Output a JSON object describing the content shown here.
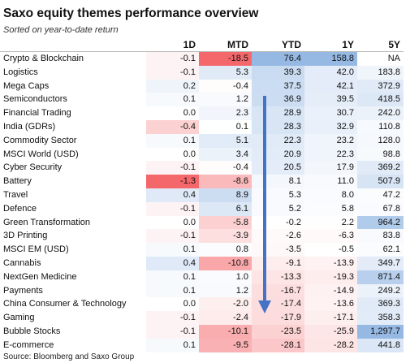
{
  "header": {
    "title": "Saxo equity themes performance overview",
    "subtitle": "Sorted on year-to-date return"
  },
  "table": {
    "columns": [
      "1D",
      "MTD",
      "YTD",
      "1Y",
      "5Y"
    ],
    "rows": [
      {
        "name": "Crypto & Blockchain",
        "cells": [
          "-0.1",
          "-18.5",
          "76.4",
          "158.8",
          "NA"
        ]
      },
      {
        "name": "Logistics",
        "cells": [
          "-0.1",
          "5.3",
          "39.3",
          "42.0",
          "183.8"
        ]
      },
      {
        "name": "Mega Caps",
        "cells": [
          "0.2",
          "-0.4",
          "37.5",
          "42.1",
          "372.9"
        ]
      },
      {
        "name": "Semiconductors",
        "cells": [
          "0.1",
          "1.2",
          "36.9",
          "39.5",
          "418.5"
        ]
      },
      {
        "name": "Financial Trading",
        "cells": [
          "0.0",
          "2.3",
          "28.9",
          "30.7",
          "242.0"
        ]
      },
      {
        "name": "India (GDRs)",
        "cells": [
          "-0.4",
          "0.1",
          "28.3",
          "32.9",
          "110.8"
        ]
      },
      {
        "name": "Commodity Sector",
        "cells": [
          "0.1",
          "5.1",
          "22.3",
          "23.2",
          "128.0"
        ]
      },
      {
        "name": "MSCI World (USD)",
        "cells": [
          "0.0",
          "3.4",
          "20.9",
          "22.3",
          "98.8"
        ]
      },
      {
        "name": "Cyber Security",
        "cells": [
          "-0.1",
          "-0.4",
          "20.5",
          "17.9",
          "369.2"
        ]
      },
      {
        "name": "Battery",
        "cells": [
          "-1.3",
          "-8.6",
          "8.1",
          "11.0",
          "507.9"
        ]
      },
      {
        "name": "Travel",
        "cells": [
          "0.4",
          "8.9",
          "5.3",
          "8.0",
          "47.2"
        ]
      },
      {
        "name": "Defence",
        "cells": [
          "-0.1",
          "6.1",
          "5.2",
          "5.8",
          "67.8"
        ]
      },
      {
        "name": "Green Transformation",
        "cells": [
          "0.0",
          "-5.8",
          "-0.2",
          "2.2",
          "964.2"
        ]
      },
      {
        "name": "3D Printing",
        "cells": [
          "-0.1",
          "-3.9",
          "-2.6",
          "-6.3",
          "83.8"
        ]
      },
      {
        "name": "MSCI EM (USD)",
        "cells": [
          "0.1",
          "0.8",
          "-3.5",
          "-0.5",
          "62.1"
        ]
      },
      {
        "name": "Cannabis",
        "cells": [
          "0.4",
          "-10.8",
          "-9.1",
          "-13.9",
          "349.7"
        ]
      },
      {
        "name": "NextGen Medicine",
        "cells": [
          "0.1",
          "1.0",
          "-13.3",
          "-19.3",
          "871.4"
        ]
      },
      {
        "name": "Payments",
        "cells": [
          "0.1",
          "1.2",
          "-16.7",
          "-14.9",
          "249.2"
        ]
      },
      {
        "name": "China Consumer & Technology",
        "cells": [
          "0.0",
          "-2.0",
          "-17.4",
          "-13.6",
          "369.3"
        ]
      },
      {
        "name": "Gaming",
        "cells": [
          "-0.1",
          "-2.4",
          "-17.9",
          "-17.1",
          "358.3"
        ]
      },
      {
        "name": "Bubble Stocks",
        "cells": [
          "-0.1",
          "-10.1",
          "-23.5",
          "-25.9",
          "1,297.7"
        ]
      },
      {
        "name": "E-commerce",
        "cells": [
          "0.1",
          "-9.5",
          "-28.1",
          "-28.2",
          "441.8"
        ]
      }
    ]
  },
  "source": "Source: Bloomberg and Saxo Group"
}
